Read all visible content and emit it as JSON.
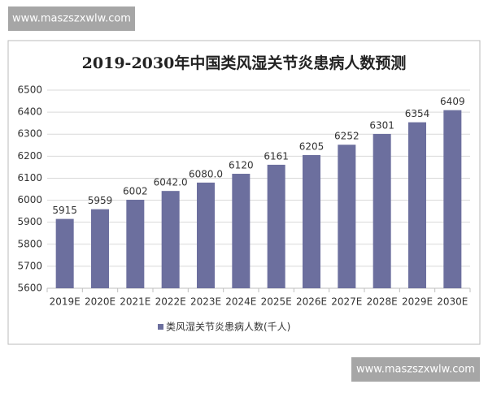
{
  "watermarks": [
    "www.maszszxwlw.com",
    "www.maszszxwlw.com"
  ],
  "chart_data": {
    "type": "bar",
    "title": "2019-2030年中国类风湿关节炎患病人数预测",
    "categories": [
      "2019E",
      "2020E",
      "2021E",
      "2022E",
      "2023E",
      "2024E",
      "2025E",
      "2026E",
      "2027E",
      "2028E",
      "2029E",
      "2030E"
    ],
    "series": [
      {
        "name": "类风湿关节炎患病人数(千人)",
        "color": "#6c6f9e",
        "values": [
          5915,
          5959,
          6002,
          6042.0,
          6080.0,
          6120,
          6161,
          6205,
          6252,
          6301,
          6354,
          6409
        ],
        "value_labels": [
          "5915",
          "5959",
          "6002",
          "6042.0",
          "6080.0",
          "6120",
          "6161",
          "6205",
          "6252",
          "6301",
          "6354",
          "6409"
        ]
      }
    ],
    "ylim": [
      5600,
      6500
    ],
    "yticks": [
      5600,
      5700,
      5800,
      5900,
      6000,
      6100,
      6200,
      6300,
      6400,
      6500
    ],
    "grid": true,
    "legend": "bottom"
  }
}
